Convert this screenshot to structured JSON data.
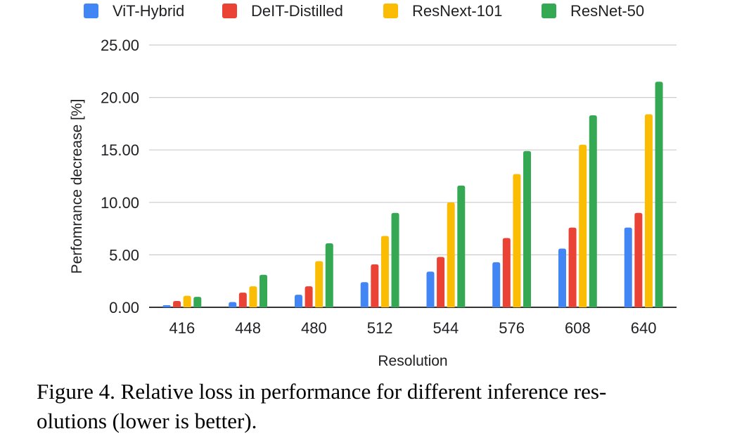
{
  "chart_data": {
    "type": "bar",
    "title": "",
    "xlabel": "Resolution",
    "ylabel": "Perfomrance decrease [%]",
    "ylim": [
      0,
      25
    ],
    "yticks": [
      "0.00",
      "5.00",
      "10.00",
      "15.00",
      "20.00",
      "25.00"
    ],
    "grid": true,
    "legend_position": "top",
    "categories": [
      "416",
      "448",
      "480",
      "512",
      "544",
      "576",
      "608",
      "640"
    ],
    "series": [
      {
        "name": "ViT-Hybrid",
        "color": "#4285f4",
        "values": [
          0.2,
          0.5,
          1.2,
          2.4,
          3.4,
          4.3,
          5.6,
          7.6
        ]
      },
      {
        "name": "DeIT-Distilled",
        "color": "#ea4335",
        "values": [
          0.6,
          1.4,
          2.0,
          4.1,
          4.8,
          6.6,
          7.6,
          9.0
        ]
      },
      {
        "name": "ResNext-101",
        "color": "#fbbc04",
        "values": [
          1.1,
          2.0,
          4.4,
          6.8,
          10.0,
          12.7,
          15.5,
          18.4
        ]
      },
      {
        "name": "ResNet-50",
        "color": "#34a853",
        "values": [
          1.0,
          3.1,
          6.1,
          9.0,
          11.6,
          14.9,
          18.3,
          21.5
        ]
      }
    ]
  },
  "caption": {
    "line1": "Figure 4. Relative loss in performance for different inference res-",
    "line2": "olutions (lower is better)."
  }
}
